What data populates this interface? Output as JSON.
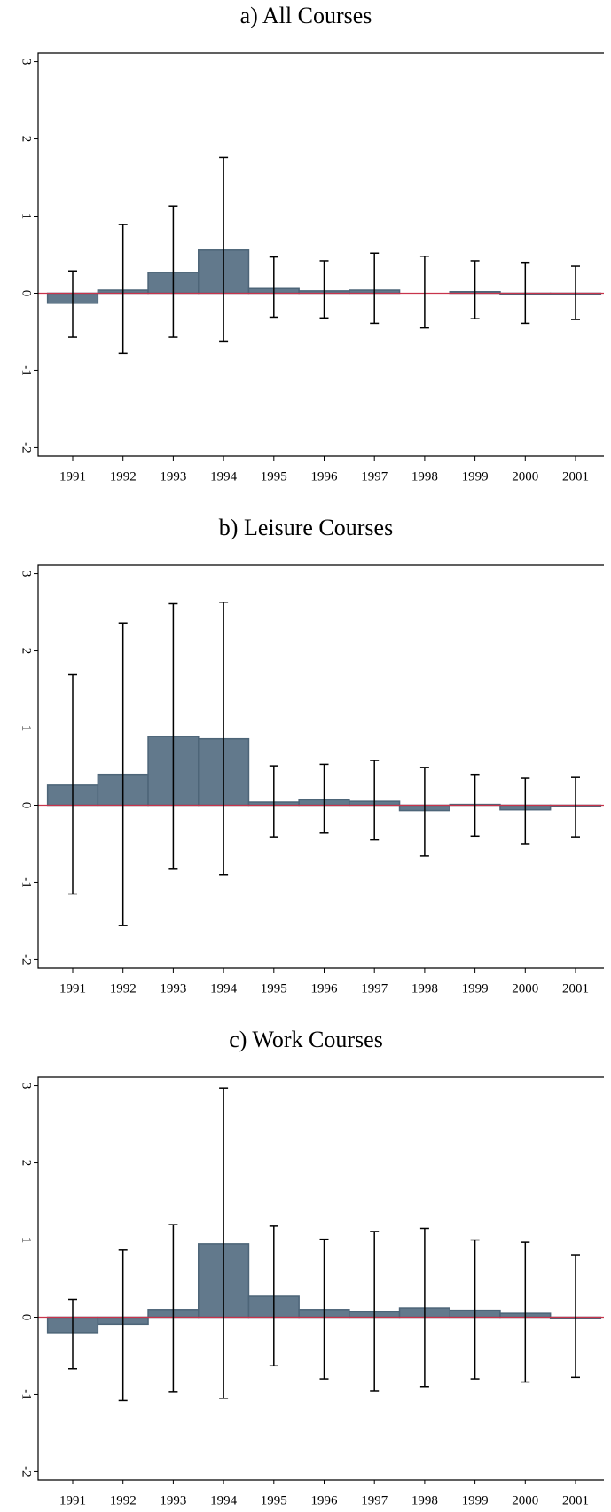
{
  "chart_data": [
    {
      "type": "bar",
      "title": "a) All Courses",
      "categories": [
        "1991",
        "1992",
        "1993",
        "1994",
        "1995",
        "1996",
        "1997",
        "1998",
        "1999",
        "2000",
        "2001"
      ],
      "values": [
        -0.13,
        0.04,
        0.27,
        0.56,
        0.06,
        0.03,
        0.04,
        0.0,
        0.02,
        -0.01,
        -0.01
      ],
      "ci_low": [
        -0.57,
        -0.78,
        -0.57,
        -0.62,
        -0.31,
        -0.32,
        -0.39,
        -0.45,
        -0.33,
        -0.39,
        -0.34
      ],
      "ci_high": [
        0.29,
        0.89,
        1.13,
        1.76,
        0.47,
        0.42,
        0.52,
        0.48,
        0.42,
        0.4,
        0.35
      ],
      "color": "#62798c",
      "ylim": [
        -2.11,
        3.11
      ],
      "yticks": [
        -2,
        -1,
        0,
        1,
        2,
        3
      ]
    },
    {
      "type": "bar",
      "title": "b) Leisure Courses",
      "categories": [
        "1991",
        "1992",
        "1993",
        "1994",
        "1995",
        "1996",
        "1997",
        "1998",
        "1999",
        "2000",
        "2001"
      ],
      "values": [
        0.26,
        0.4,
        0.89,
        0.86,
        0.04,
        0.07,
        0.05,
        -0.07,
        0.01,
        -0.06,
        -0.01
      ],
      "ci_low": [
        -1.15,
        -1.56,
        -0.82,
        -0.9,
        -0.41,
        -0.36,
        -0.45,
        -0.66,
        -0.4,
        -0.5,
        -0.41
      ],
      "ci_high": [
        1.69,
        2.36,
        2.61,
        2.63,
        0.51,
        0.53,
        0.58,
        0.49,
        0.4,
        0.35,
        0.36
      ],
      "color": "#62798c",
      "ylim": [
        -2.11,
        3.11
      ],
      "yticks": [
        -2,
        -1,
        0,
        1,
        2,
        3
      ]
    },
    {
      "type": "bar",
      "title": "c) Work Courses",
      "categories": [
        "1991",
        "1992",
        "1993",
        "1994",
        "1995",
        "1996",
        "1997",
        "1998",
        "1999",
        "2000",
        "2001"
      ],
      "values": [
        -0.2,
        -0.09,
        0.1,
        0.95,
        0.27,
        0.1,
        0.07,
        0.12,
        0.09,
        0.05,
        -0.01
      ],
      "ci_low": [
        -0.67,
        -1.08,
        -0.97,
        -1.05,
        -0.63,
        -0.8,
        -0.96,
        -0.9,
        -0.8,
        -0.84,
        -0.78
      ],
      "ci_high": [
        0.23,
        0.87,
        1.2,
        2.97,
        1.18,
        1.01,
        1.11,
        1.15,
        1.0,
        0.97,
        0.81
      ],
      "color": "#62798c",
      "ylim": [
        -2.11,
        3.11
      ],
      "yticks": [
        -2,
        -1,
        0,
        1,
        2,
        3
      ]
    }
  ]
}
